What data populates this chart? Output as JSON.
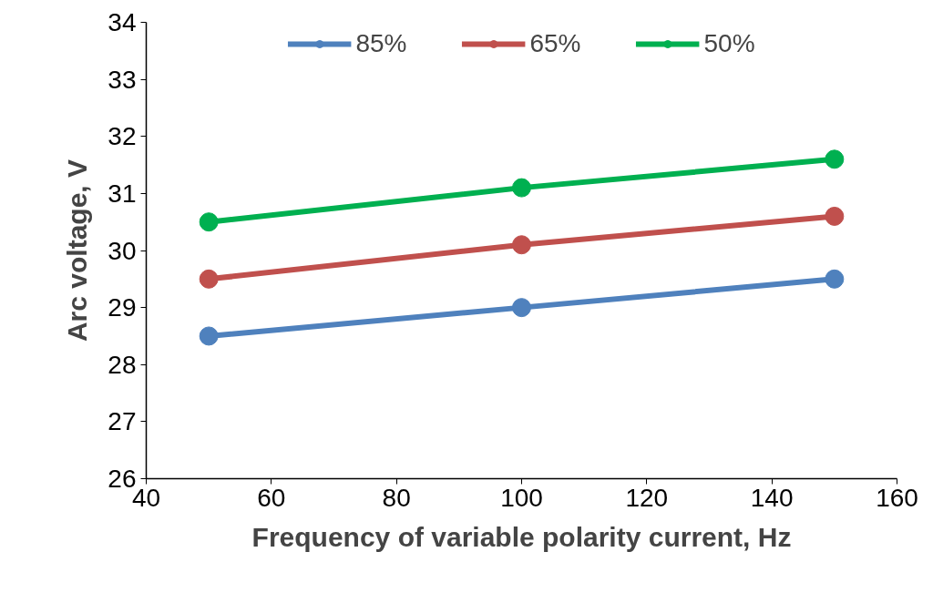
{
  "chart_data": {
    "type": "line",
    "xlabel": "Frequency of variable polarity current, Hz",
    "ylabel": "Arc voltage, V",
    "x": [
      50,
      100,
      150
    ],
    "series": [
      {
        "name": "85%",
        "color": "#4f81bd",
        "values": [
          28.5,
          29.0,
          29.5
        ]
      },
      {
        "name": "65%",
        "color": "#c0504d",
        "values": [
          29.5,
          30.1,
          30.6
        ]
      },
      {
        "name": "50%",
        "color": "#00b050",
        "values": [
          30.5,
          31.1,
          31.6
        ]
      }
    ],
    "xlim": [
      40,
      160
    ],
    "xticks": [
      40,
      60,
      80,
      100,
      120,
      140,
      160
    ],
    "ylim": [
      26,
      34
    ],
    "yticks": [
      26,
      27,
      28,
      29,
      30,
      31,
      32,
      33,
      34
    ],
    "grid": false,
    "legend": "top",
    "marker": "circle",
    "line_style": "solid"
  }
}
